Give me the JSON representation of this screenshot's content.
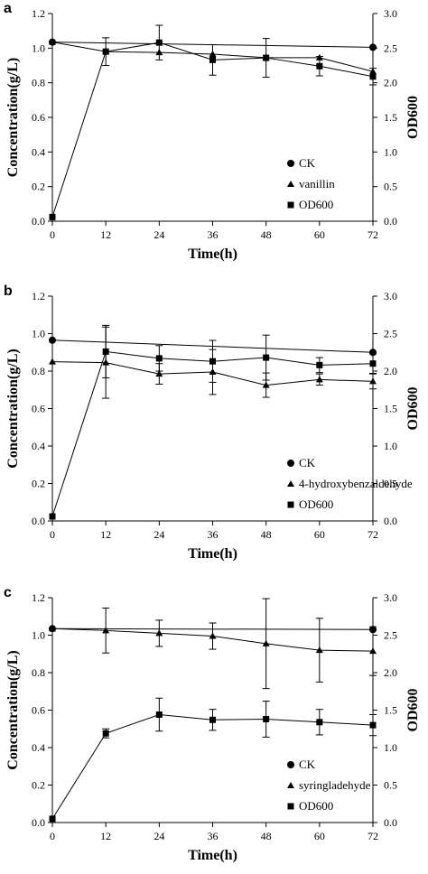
{
  "figure": {
    "panels": [
      {
        "panel_label": "a",
        "chart_data": {
          "type": "line",
          "x": [
            0,
            12,
            24,
            36,
            48,
            60,
            72
          ],
          "xlabel": "Time(h)",
          "ylabel": "Concentration(g/L)",
          "y2label": "OD600",
          "xlim": [
            0,
            72
          ],
          "ylim": [
            0,
            1.2
          ],
          "y2lim": [
            0,
            3.0
          ],
          "xticks": [
            "0",
            "12",
            "24",
            "36",
            "48",
            "60",
            "72"
          ],
          "yticks": [
            "0.0",
            "0.2",
            "0.4",
            "0.6",
            "0.8",
            "1.0",
            "1.2"
          ],
          "y2ticks": [
            "0.0",
            "0.5",
            "1.0",
            "1.5",
            "2.0",
            "2.5",
            "3.0"
          ],
          "grid": false,
          "legend_position": "bottom-right",
          "series": [
            {
              "name": "CK",
              "marker": "circle",
              "axis": "left",
              "x": [
                0,
                72
              ],
              "values": [
                1.035,
                1.005
              ],
              "err": [
                0,
                0
              ]
            },
            {
              "name": "vanillin",
              "marker": "triangle",
              "axis": "left",
              "x": [
                0,
                12,
                24,
                36,
                48,
                60,
                72
              ],
              "values": [
                1.035,
                0.98,
                0.975,
                0.965,
                0.945,
                0.945,
                0.865
              ],
              "err": [
                0,
                0,
                0,
                0,
                0,
                0,
                0
              ]
            },
            {
              "name": "OD600",
              "marker": "square",
              "axis": "right",
              "x": [
                0,
                12,
                24,
                36,
                48,
                60,
                72
              ],
              "values": [
                0.06,
                2.45,
                2.58,
                2.33,
                2.36,
                2.24,
                2.09
              ],
              "err": [
                0,
                0.2,
                0.25,
                0.22,
                0.28,
                0.14,
                0.12
              ]
            }
          ]
        }
      },
      {
        "panel_label": "b",
        "chart_data": {
          "type": "line",
          "x": [
            0,
            12,
            24,
            36,
            48,
            60,
            72
          ],
          "xlabel": "Time(h)",
          "ylabel": "Concentration(g/L)",
          "y2label": "OD600",
          "xlim": [
            0,
            72
          ],
          "ylim": [
            0,
            1.2
          ],
          "y2lim": [
            0,
            3.0
          ],
          "xticks": [
            "0",
            "12",
            "24",
            "36",
            "48",
            "60",
            "72"
          ],
          "yticks": [
            "0.0",
            "0.2",
            "0.4",
            "0.6",
            "0.8",
            "1.0",
            "1.2"
          ],
          "y2ticks": [
            "0.0",
            "0.5",
            "1.0",
            "1.5",
            "2.0",
            "2.5",
            "3.0"
          ],
          "grid": false,
          "legend_position": "bottom-right",
          "series": [
            {
              "name": "CK",
              "marker": "circle",
              "axis": "left",
              "x": [
                0,
                72
              ],
              "values": [
                0.965,
                0.9
              ],
              "err": [
                0,
                0
              ]
            },
            {
              "name": "4-hydroxybenzaldehyde",
              "marker": "triangle",
              "axis": "left",
              "x": [
                0,
                12,
                24,
                36,
                48,
                60,
                72
              ],
              "values": [
                0.85,
                0.845,
                0.785,
                0.795,
                0.725,
                0.755,
                0.745
              ],
              "err": [
                0,
                0.19,
                0.055,
                0.12,
                0.065,
                0.03,
                0.04
              ]
            },
            {
              "name": "OD600",
              "marker": "square",
              "axis": "right",
              "x": [
                0,
                12,
                24,
                36,
                48,
                60,
                72
              ],
              "values": [
                0.06,
                2.26,
                2.17,
                2.13,
                2.18,
                2.08,
                2.1
              ],
              "err": [
                0,
                0.35,
                0.17,
                0.28,
                0.3,
                0.1,
                0.13
              ]
            }
          ]
        }
      },
      {
        "panel_label": "c",
        "chart_data": {
          "type": "line",
          "x": [
            0,
            12,
            24,
            36,
            48,
            60,
            72
          ],
          "xlabel": "Time(h)",
          "ylabel": "Concentration(g/L)",
          "y2label": "OD600",
          "xlim": [
            0,
            72
          ],
          "ylim": [
            0,
            1.2
          ],
          "y2lim": [
            0,
            3.0
          ],
          "xticks": [
            "0",
            "12",
            "24",
            "36",
            "48",
            "60",
            "72"
          ],
          "yticks": [
            "0.0",
            "0.2",
            "0.4",
            "0.6",
            "0.8",
            "1.0",
            "1.2"
          ],
          "y2ticks": [
            "0.0",
            "0.5",
            "1.0",
            "1.5",
            "2.0",
            "2.5",
            "3.0"
          ],
          "grid": false,
          "legend_position": "bottom-right",
          "series": [
            {
              "name": "CK",
              "marker": "circle",
              "axis": "left",
              "x": [
                0,
                72
              ],
              "values": [
                1.035,
                1.03
              ],
              "err": [
                0,
                0
              ]
            },
            {
              "name": "syringladehyde",
              "marker": "triangle",
              "axis": "left",
              "x": [
                0,
                12,
                24,
                36,
                48,
                60,
                72
              ],
              "values": [
                1.035,
                1.025,
                1.01,
                0.995,
                0.955,
                0.92,
                0.915
              ],
              "err": [
                0,
                0.12,
                0.07,
                0.07,
                0.24,
                0.17,
                0.13
              ]
            },
            {
              "name": "OD600",
              "marker": "square",
              "axis": "right",
              "x": [
                0,
                12,
                24,
                36,
                48,
                60,
                72
              ],
              "values": [
                0.05,
                1.19,
                1.44,
                1.37,
                1.38,
                1.34,
                1.3
              ],
              "err": [
                0,
                0.06,
                0.22,
                0.14,
                0.24,
                0.17,
                0.14
              ]
            }
          ]
        }
      }
    ]
  }
}
